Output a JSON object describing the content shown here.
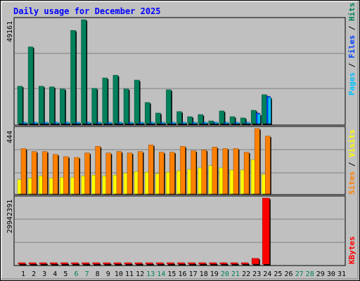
{
  "title": "Daily usage for December 2025",
  "colors": {
    "background": "#c0c0c0",
    "title": "#0000ff",
    "hits": "#00805c",
    "files": "#0040ff",
    "pages": "#00c0ff",
    "visits": "#ffff00",
    "sites": "#ff8000",
    "kbytes": "#ff0000",
    "weekend_label": "#00805c",
    "weekday_label": "#000000"
  },
  "chart_data": [
    {
      "type": "bar",
      "panel": "top",
      "ymax": 49161,
      "ymax_label": "49161",
      "legend": [
        "Pages",
        "Files",
        "Hits"
      ],
      "categories": [
        "1",
        "2",
        "3",
        "4",
        "5",
        "6",
        "7",
        "8",
        "9",
        "10",
        "11",
        "12",
        "13",
        "14",
        "15",
        "16",
        "17",
        "18",
        "19",
        "20",
        "21",
        "22",
        "23",
        "24",
        "25",
        "26",
        "27",
        "28",
        "29",
        "30",
        "31"
      ],
      "weekend_days": [
        "6",
        "7",
        "13",
        "14",
        "20",
        "21",
        "27",
        "28"
      ],
      "series": [
        {
          "name": "Hits",
          "color_key": "hits",
          "values": [
            17700,
            36300,
            17700,
            17400,
            16400,
            44100,
            49161,
            16700,
            21600,
            22900,
            16400,
            20600,
            10000,
            5000,
            16000,
            5700,
            3300,
            4300,
            1300,
            6000,
            3300,
            2700,
            6300,
            13700,
            0,
            0,
            0,
            0,
            0,
            0,
            0
          ]
        },
        {
          "name": "Files",
          "color_key": "files",
          "values": [
            450,
            500,
            480,
            420,
            400,
            500,
            520,
            470,
            490,
            510,
            440,
            460,
            350,
            250,
            420,
            280,
            170,
            230,
            90,
            300,
            180,
            140,
            5000,
            12900,
            0,
            0,
            0,
            0,
            0,
            0,
            0
          ]
        },
        {
          "name": "Pages",
          "color_key": "pages",
          "values": [
            400,
            450,
            430,
            380,
            360,
            450,
            460,
            420,
            440,
            460,
            390,
            410,
            300,
            200,
            380,
            240,
            150,
            200,
            80,
            260,
            160,
            120,
            4400,
            12300,
            0,
            0,
            0,
            0,
            0,
            0,
            0
          ]
        }
      ]
    },
    {
      "type": "bar",
      "panel": "middle",
      "ymax": 444,
      "ymax_label": "444",
      "legend": [
        "Sites",
        "Visits"
      ],
      "categories": [
        "1",
        "2",
        "3",
        "4",
        "5",
        "6",
        "7",
        "8",
        "9",
        "10",
        "11",
        "12",
        "13",
        "14",
        "15",
        "16",
        "17",
        "18",
        "19",
        "20",
        "21",
        "22",
        "23",
        "24",
        "25",
        "26",
        "27",
        "28",
        "29",
        "30",
        "31"
      ],
      "series": [
        {
          "name": "Sites",
          "color_key": "sites",
          "values": [
            308,
            288,
            288,
            268,
            253,
            248,
            278,
            323,
            278,
            288,
            278,
            288,
            333,
            283,
            283,
            323,
            293,
            298,
            318,
            308,
            308,
            283,
            444,
            393,
            0,
            0,
            0,
            0,
            0,
            0,
            0
          ]
        },
        {
          "name": "Visits",
          "color_key": "visits",
          "values": [
            97,
            107,
            122,
            107,
            112,
            112,
            122,
            127,
            122,
            127,
            142,
            152,
            147,
            137,
            147,
            157,
            167,
            177,
            192,
            177,
            162,
            162,
            232,
            132,
            0,
            0,
            0,
            0,
            0,
            0,
            0
          ]
        }
      ]
    },
    {
      "type": "bar",
      "panel": "bottom",
      "ymax": 29942391,
      "ymax_label": "29942391",
      "legend": [
        "KBytes"
      ],
      "categories": [
        "1",
        "2",
        "3",
        "4",
        "5",
        "6",
        "7",
        "8",
        "9",
        "10",
        "11",
        "12",
        "13",
        "14",
        "15",
        "16",
        "17",
        "18",
        "19",
        "20",
        "21",
        "22",
        "23",
        "24",
        "25",
        "26",
        "27",
        "28",
        "29",
        "30",
        "31"
      ],
      "series": [
        {
          "name": "KBytes",
          "color_key": "kbytes",
          "values": [
            500000,
            500000,
            500000,
            500000,
            500000,
            500000,
            500000,
            500000,
            500000,
            500000,
            500000,
            500000,
            500000,
            500000,
            500000,
            500000,
            500000,
            500000,
            500000,
            500000,
            500000,
            500000,
            2600000,
            29942391,
            0,
            0,
            0,
            0,
            0,
            0,
            0
          ]
        }
      ]
    }
  ]
}
